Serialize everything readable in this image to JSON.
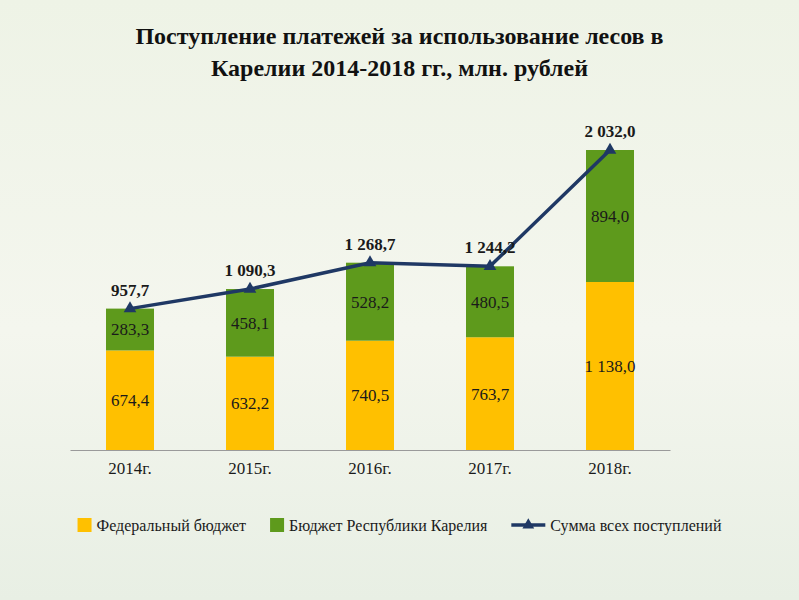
{
  "chart_data": {
    "type": "bar",
    "title": "Поступление платежей за использование лесов в Карелии 2014-2018 гг., млн. рублей",
    "categories": [
      "2014г.",
      "2015г.",
      "2016г.",
      "2017г.",
      "2018г."
    ],
    "series": [
      {
        "name": "Федеральный бюджет",
        "type": "bar",
        "color": "#ffc000",
        "values": [
          674.4,
          632.2,
          740.5,
          763.7,
          1138.0
        ],
        "value_labels": [
          "674,4",
          "632,2",
          "740,5",
          "763,7",
          "1 138,0"
        ]
      },
      {
        "name": "Бюджет Республики Карелия",
        "type": "bar",
        "color": "#5e9a1c",
        "values": [
          283.3,
          458.1,
          528.2,
          480.5,
          894.0
        ],
        "value_labels": [
          "283,3",
          "458,1",
          "528,2",
          "480,5",
          "894,0"
        ]
      },
      {
        "name": "Сумма всех поступлений",
        "type": "line",
        "color": "#1f3864",
        "marker": "triangle",
        "line_style": "solid",
        "values": [
          957.7,
          1090.3,
          1268.7,
          1244.2,
          2032.0
        ],
        "value_labels": [
          "957,7",
          "1 090,3",
          "1 268,7",
          "1 244,2",
          "2 032,0"
        ]
      }
    ],
    "stacked": true,
    "data_labels": true,
    "legend": "bottom",
    "tick_labels": "x"
  }
}
